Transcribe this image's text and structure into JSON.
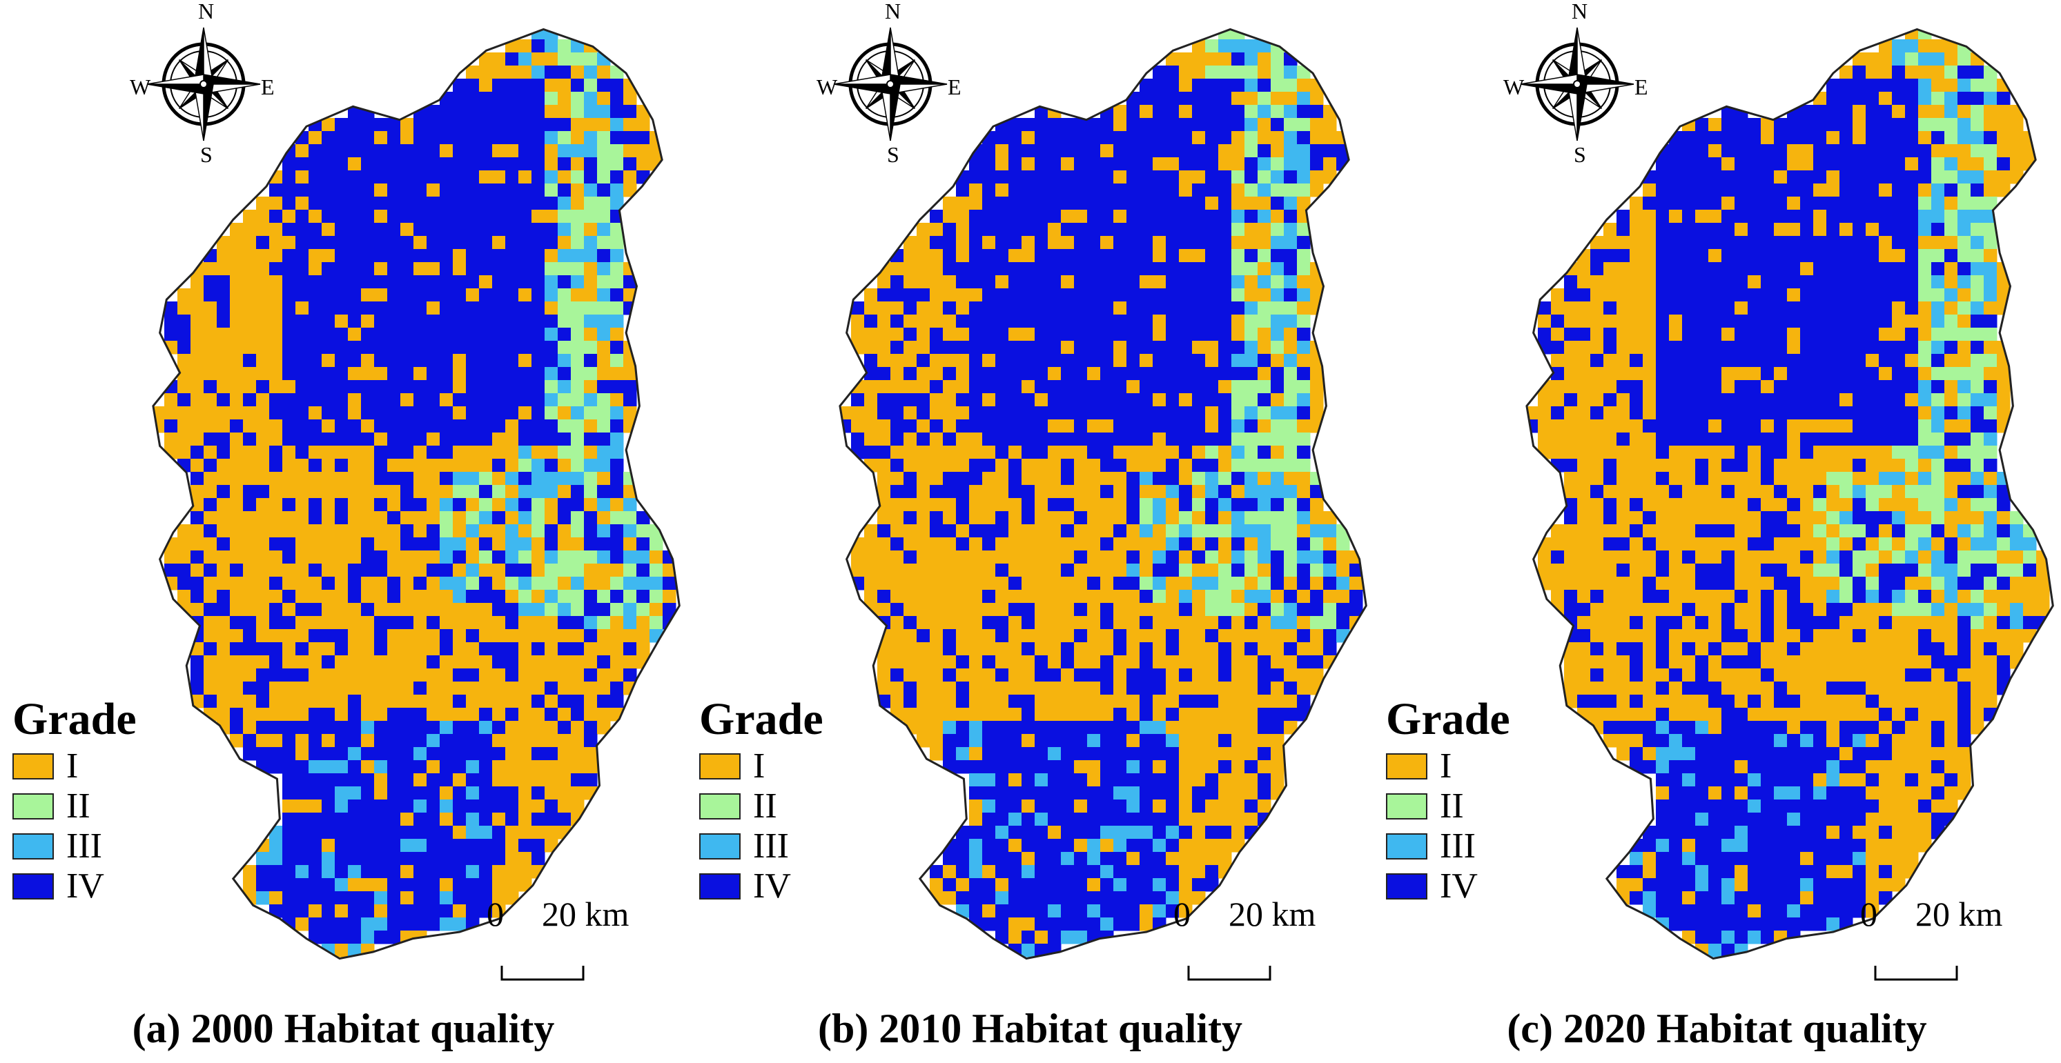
{
  "colors": {
    "grade_I": "#F6B40E",
    "grade_II": "#A8F59A",
    "grade_III": "#3FB8F0",
    "grade_IV": "#0A10E0",
    "outline": "#222222"
  },
  "compass": {
    "north": "N",
    "south": "S",
    "east": "E",
    "west": "W"
  },
  "legend": {
    "title": "Grade",
    "items": [
      {
        "label": "I",
        "color_key": "grade_I"
      },
      {
        "label": "II",
        "color_key": "grade_II"
      },
      {
        "label": "III",
        "color_key": "grade_III"
      },
      {
        "label": "IV",
        "color_key": "grade_IV"
      }
    ]
  },
  "scale": {
    "zero": "0",
    "distance": "20 km"
  },
  "panels": [
    {
      "caption": "(a) 2000 Habitat quality",
      "seed": 11
    },
    {
      "caption": "(b) 2010 Habitat quality",
      "seed": 29
    },
    {
      "caption": "(c) 2020 Habitat quality",
      "seed": 47
    }
  ]
}
